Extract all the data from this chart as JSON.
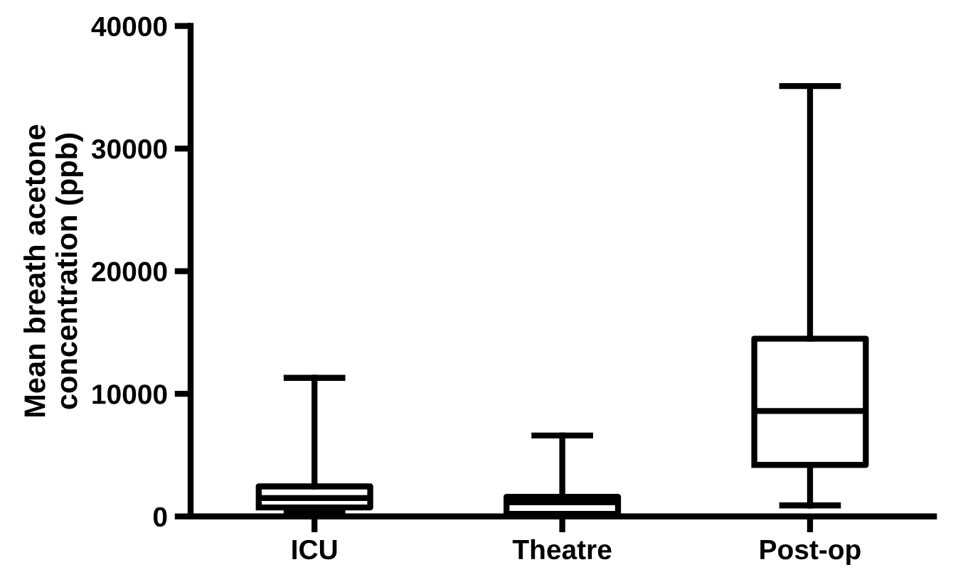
{
  "chart_data": {
    "type": "box",
    "ylabel": "Mean breath acetone\nconcentration (ppb)",
    "categories": [
      "ICU",
      "Theatre",
      "Post-op"
    ],
    "boxes": [
      {
        "low": 400,
        "q1": 730,
        "median": 1500,
        "q3": 2450,
        "high": 11300
      },
      {
        "low": 100,
        "q1": 200,
        "median": 1150,
        "q3": 1600,
        "high": 6600
      },
      {
        "low": 900,
        "q1": 4200,
        "median": 8600,
        "q3": 14500,
        "high": 35100
      }
    ],
    "color": "#000000",
    "ylim": [
      0,
      40000
    ],
    "yticks": [
      0,
      10000,
      20000,
      30000,
      40000
    ],
    "grid": false
  }
}
